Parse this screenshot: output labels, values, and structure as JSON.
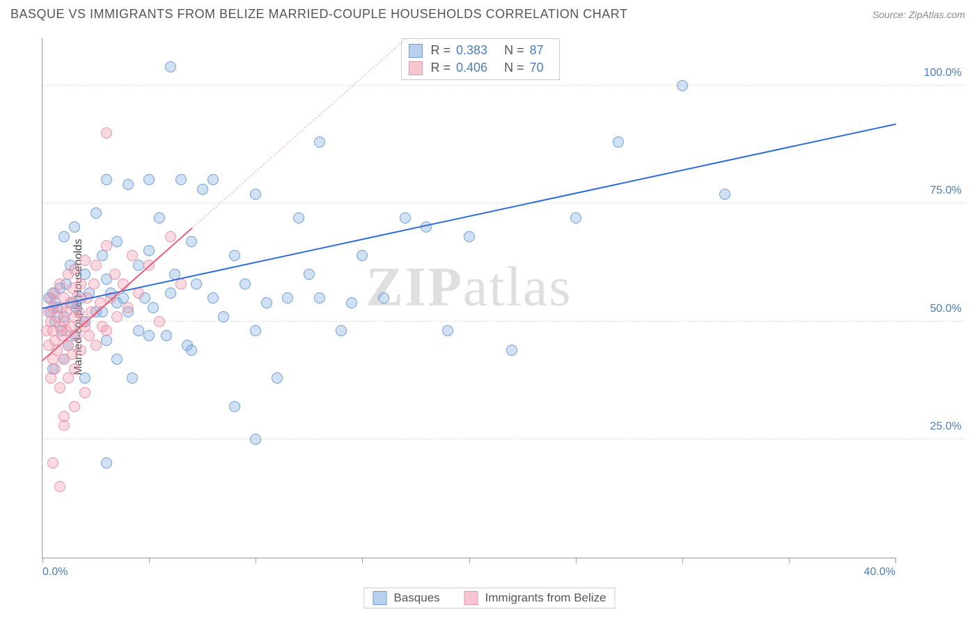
{
  "header": {
    "title": "BASQUE VS IMMIGRANTS FROM BELIZE MARRIED-COUPLE HOUSEHOLDS CORRELATION CHART",
    "source": "Source: ZipAtlas.com"
  },
  "chart": {
    "type": "scatter",
    "ylabel": "Married-couple Households",
    "xlim": [
      0,
      40
    ],
    "ylim": [
      0,
      110
    ],
    "xticks": [
      0,
      5,
      10,
      15,
      20,
      25,
      30,
      35,
      40
    ],
    "xtick_labels_shown": {
      "0": "0.0%",
      "40": "40.0%"
    },
    "yticks": [
      25,
      50,
      75,
      100
    ],
    "ytick_labels": [
      "25.0%",
      "50.0%",
      "75.0%",
      "100.0%"
    ],
    "grid_color": "#dddddd",
    "axis_color": "#999999",
    "tick_label_color": "#4a7ebb",
    "background_color": "#ffffff",
    "marker_radius": 8,
    "series": [
      {
        "name": "Basques",
        "marker_fill": "rgba(122,168,224,0.35)",
        "marker_stroke": "#6f9ed6",
        "trend_color": "#2e6bd6",
        "trend_dash_color": "rgba(46,107,214,0.5)",
        "swatch_fill": "#b8d0ee",
        "swatch_stroke": "#6f9ed6",
        "R": "0.383",
        "N": "87",
        "trend": {
          "x1": 0,
          "y1": 53,
          "x2": 40,
          "y2": 92
        },
        "points": [
          [
            0.3,
            55
          ],
          [
            0.4,
            52
          ],
          [
            0.5,
            56
          ],
          [
            0.6,
            54
          ],
          [
            0.6,
            50
          ],
          [
            0.7,
            53
          ],
          [
            0.8,
            57
          ],
          [
            0.9,
            48
          ],
          [
            1.0,
            68
          ],
          [
            1.0,
            51
          ],
          [
            1.1,
            58
          ],
          [
            1.2,
            45
          ],
          [
            1.3,
            62
          ],
          [
            1.4,
            54
          ],
          [
            1.5,
            70
          ],
          [
            1.6,
            53
          ],
          [
            1.8,
            55
          ],
          [
            2.0,
            60
          ],
          [
            2.0,
            50
          ],
          [
            2.2,
            56
          ],
          [
            2.5,
            73
          ],
          [
            2.5,
            52
          ],
          [
            2.8,
            64
          ],
          [
            3.0,
            80
          ],
          [
            3.0,
            46
          ],
          [
            3.0,
            59
          ],
          [
            3.0,
            20
          ],
          [
            3.2,
            56
          ],
          [
            3.5,
            67
          ],
          [
            3.5,
            42
          ],
          [
            3.8,
            55
          ],
          [
            4.0,
            79
          ],
          [
            4.0,
            52
          ],
          [
            4.2,
            38
          ],
          [
            4.5,
            62
          ],
          [
            4.8,
            55
          ],
          [
            5.0,
            80
          ],
          [
            5.0,
            47
          ],
          [
            5.0,
            65
          ],
          [
            5.2,
            53
          ],
          [
            5.5,
            72
          ],
          [
            5.8,
            47
          ],
          [
            6.0,
            56
          ],
          [
            6.0,
            104
          ],
          [
            6.2,
            60
          ],
          [
            6.5,
            80
          ],
          [
            6.8,
            45
          ],
          [
            7.0,
            67
          ],
          [
            7.0,
            44
          ],
          [
            7.2,
            58
          ],
          [
            7.5,
            78
          ],
          [
            8.0,
            55
          ],
          [
            8.0,
            80
          ],
          [
            8.5,
            51
          ],
          [
            9.0,
            64
          ],
          [
            9.0,
            32
          ],
          [
            9.5,
            58
          ],
          [
            10.0,
            77
          ],
          [
            10.0,
            48
          ],
          [
            10.0,
            25
          ],
          [
            10.5,
            54
          ],
          [
            11.0,
            38
          ],
          [
            11.5,
            55
          ],
          [
            12.0,
            72
          ],
          [
            12.5,
            60
          ],
          [
            13.0,
            55
          ],
          [
            13.0,
            88
          ],
          [
            14.0,
            48
          ],
          [
            14.5,
            54
          ],
          [
            15.0,
            64
          ],
          [
            16.0,
            55
          ],
          [
            17.0,
            72
          ],
          [
            18.0,
            70
          ],
          [
            19.0,
            48
          ],
          [
            20.0,
            68
          ],
          [
            22.0,
            44
          ],
          [
            25.0,
            72
          ],
          [
            27.0,
            88
          ],
          [
            30.0,
            100
          ],
          [
            32.0,
            77
          ],
          [
            0.5,
            40
          ],
          [
            1.0,
            42
          ],
          [
            2.0,
            38
          ],
          [
            3.5,
            54
          ],
          [
            4.5,
            48
          ],
          [
            1.5,
            47
          ],
          [
            2.8,
            52
          ]
        ]
      },
      {
        "name": "Immigrants from Belize",
        "marker_fill": "rgba(240,150,170,0.35)",
        "marker_stroke": "#e695aa",
        "trend_color": "#e85c7a",
        "trend_dash_color": "rgba(232,92,122,0.5)",
        "swatch_fill": "#f5c5d0",
        "swatch_stroke": "#e695aa",
        "R": "0.406",
        "N": "70",
        "trend": {
          "x1": 0,
          "y1": 42,
          "x2": 7,
          "y2": 70
        },
        "points": [
          [
            0.2,
            48
          ],
          [
            0.3,
            52
          ],
          [
            0.3,
            45
          ],
          [
            0.4,
            50
          ],
          [
            0.4,
            55
          ],
          [
            0.5,
            42
          ],
          [
            0.5,
            48
          ],
          [
            0.5,
            53
          ],
          [
            0.6,
            56
          ],
          [
            0.6,
            46
          ],
          [
            0.6,
            40
          ],
          [
            0.7,
            51
          ],
          [
            0.7,
            44
          ],
          [
            0.8,
            58
          ],
          [
            0.8,
            49
          ],
          [
            0.8,
            36
          ],
          [
            0.9,
            53
          ],
          [
            0.9,
            47
          ],
          [
            1.0,
            55
          ],
          [
            1.0,
            50
          ],
          [
            1.0,
            42
          ],
          [
            1.0,
            30
          ],
          [
            1.1,
            48
          ],
          [
            1.1,
            52
          ],
          [
            1.2,
            60
          ],
          [
            1.2,
            45
          ],
          [
            1.2,
            38
          ],
          [
            1.3,
            54
          ],
          [
            1.3,
            49
          ],
          [
            1.4,
            57
          ],
          [
            1.4,
            43
          ],
          [
            1.5,
            51
          ],
          [
            1.5,
            61
          ],
          [
            1.5,
            40
          ],
          [
            1.6,
            47
          ],
          [
            1.6,
            55
          ],
          [
            1.7,
            52
          ],
          [
            1.8,
            58
          ],
          [
            1.8,
            44
          ],
          [
            1.9,
            50
          ],
          [
            2.0,
            63
          ],
          [
            2.0,
            49
          ],
          [
            2.0,
            35
          ],
          [
            2.1,
            55
          ],
          [
            2.2,
            47
          ],
          [
            2.3,
            52
          ],
          [
            2.4,
            58
          ],
          [
            2.5,
            45
          ],
          [
            2.5,
            62
          ],
          [
            2.7,
            54
          ],
          [
            2.8,
            49
          ],
          [
            3.0,
            66
          ],
          [
            3.0,
            90
          ],
          [
            3.0,
            48
          ],
          [
            3.2,
            55
          ],
          [
            3.4,
            60
          ],
          [
            3.5,
            51
          ],
          [
            3.8,
            58
          ],
          [
            4.0,
            53
          ],
          [
            4.2,
            64
          ],
          [
            4.5,
            56
          ],
          [
            5.0,
            62
          ],
          [
            5.5,
            50
          ],
          [
            6.0,
            68
          ],
          [
            6.5,
            58
          ],
          [
            0.5,
            20
          ],
          [
            0.8,
            15
          ],
          [
            1.0,
            28
          ],
          [
            1.5,
            32
          ],
          [
            0.4,
            38
          ]
        ]
      }
    ],
    "legend": {
      "items": [
        "Basques",
        "Immigrants from Belize"
      ]
    },
    "watermark": "ZIPatlas"
  }
}
